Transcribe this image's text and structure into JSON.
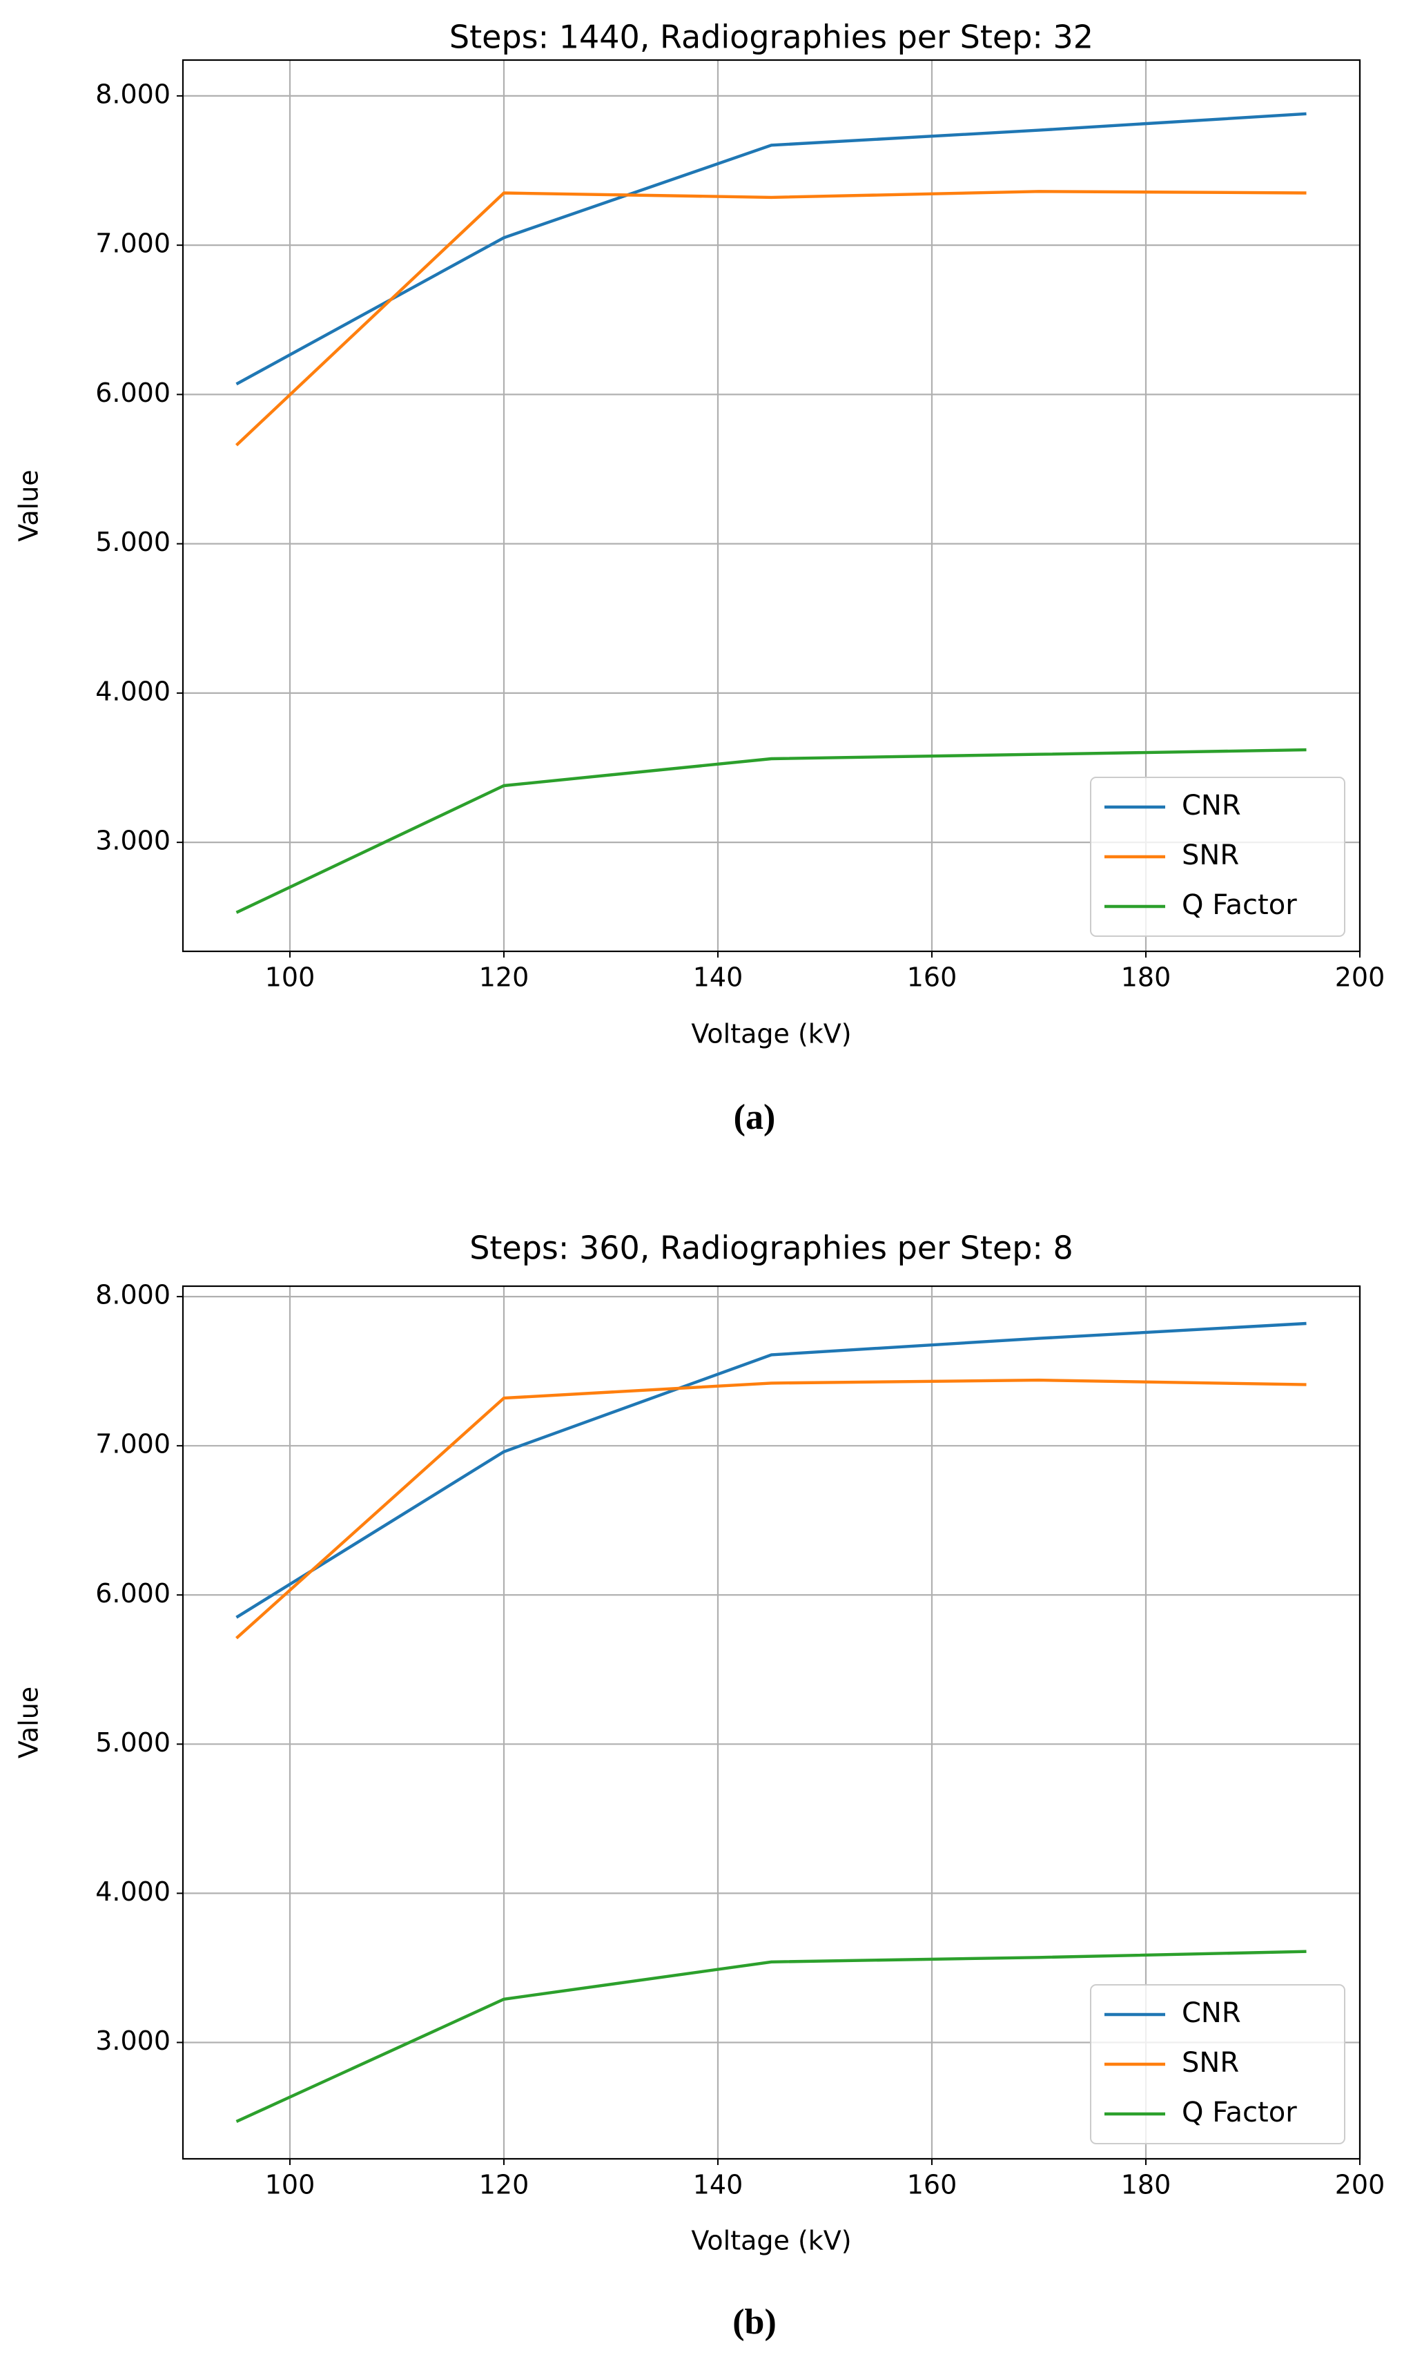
{
  "chart_data": [
    {
      "type": "line",
      "title": "Steps: 1440, Radiographies per Step: 32",
      "xlabel": "Voltage (kV)",
      "ylabel": "Value",
      "caption": "(a)",
      "x": [
        95,
        120,
        145,
        170,
        195
      ],
      "series": [
        {
          "name": "CNR",
          "color": "#1f77b4",
          "values": [
            6.07,
            7.05,
            7.67,
            7.77,
            7.88
          ]
        },
        {
          "name": "SNR",
          "color": "#ff7f0e",
          "values": [
            5.66,
            7.35,
            7.32,
            7.36,
            7.35
          ]
        },
        {
          "name": "Q Factor",
          "color": "#2ca02c",
          "values": [
            2.53,
            3.38,
            3.56,
            3.59,
            3.62
          ]
        }
      ],
      "xlim": [
        90,
        200
      ],
      "xticks": [
        100,
        120,
        140,
        160,
        180,
        200
      ],
      "ylim": [
        2.27,
        8.24
      ],
      "yticks": [
        {
          "value": 3,
          "label": "3.000"
        },
        {
          "value": 4,
          "label": "4.000"
        },
        {
          "value": 5,
          "label": "5.000"
        },
        {
          "value": 6,
          "label": "6.000"
        },
        {
          "value": 7,
          "label": "7.000"
        },
        {
          "value": 8,
          "label": "8.000"
        }
      ],
      "grid": true,
      "legend": "lower right"
    },
    {
      "type": "line",
      "title": "Steps: 360, Radiographies per Step: 8",
      "xlabel": "Voltage (kV)",
      "ylabel": "Value",
      "caption": "(b)",
      "x": [
        95,
        120,
        145,
        170,
        195
      ],
      "series": [
        {
          "name": "CNR",
          "color": "#1f77b4",
          "values": [
            5.85,
            6.96,
            7.61,
            7.72,
            7.82
          ]
        },
        {
          "name": "SNR",
          "color": "#ff7f0e",
          "values": [
            5.71,
            7.32,
            7.42,
            7.44,
            7.41
          ]
        },
        {
          "name": "Q Factor",
          "color": "#2ca02c",
          "values": [
            2.47,
            3.29,
            3.54,
            3.57,
            3.61
          ]
        }
      ],
      "xlim": [
        90,
        200
      ],
      "xticks": [
        100,
        120,
        140,
        160,
        180,
        200
      ],
      "ylim": [
        2.22,
        8.07
      ],
      "yticks": [
        {
          "value": 3,
          "label": "3.000"
        },
        {
          "value": 4,
          "label": "4.000"
        },
        {
          "value": 5,
          "label": "5.000"
        },
        {
          "value": 6,
          "label": "6.000"
        },
        {
          "value": 7,
          "label": "7.000"
        },
        {
          "value": 8,
          "label": "8.000"
        }
      ],
      "grid": true,
      "legend": "lower right"
    }
  ]
}
